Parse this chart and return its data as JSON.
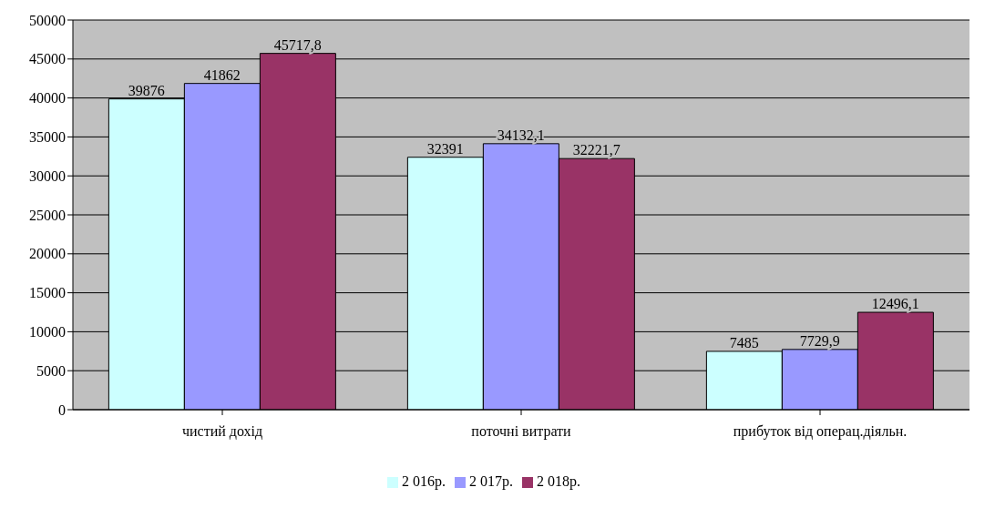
{
  "chart_data": {
    "type": "bar",
    "categories": [
      "чистий дохід",
      "поточні витрати",
      "прибуток від операц.діяльн."
    ],
    "series": [
      {
        "name": "2 016р.",
        "color": "#ccffff",
        "values": [
          39876,
          32391,
          7485
        ],
        "value_labels": [
          "39876",
          "32391",
          "7485"
        ]
      },
      {
        "name": "2 017р.",
        "color": "#9999ff",
        "values": [
          41862,
          34132.1,
          7729.9
        ],
        "value_labels": [
          "41862",
          "34132,1",
          "7729,9"
        ]
      },
      {
        "name": "2 018р.",
        "color": "#993366",
        "values": [
          45717.8,
          32221.7,
          12496.1
        ],
        "value_labels": [
          "45717,8",
          "32221,7",
          "12496,1"
        ]
      }
    ],
    "ylim": [
      0,
      50000
    ],
    "yticks": [
      0,
      5000,
      10000,
      15000,
      20000,
      25000,
      30000,
      35000,
      40000,
      45000,
      50000
    ],
    "grid": "y",
    "legend": "bottom"
  }
}
